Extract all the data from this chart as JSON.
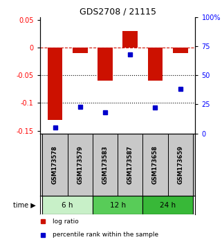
{
  "title": "GDS2708 / 21115",
  "samples": [
    "GSM173578",
    "GSM173579",
    "GSM173583",
    "GSM173587",
    "GSM173658",
    "GSM173659"
  ],
  "log_ratios": [
    -0.13,
    -0.01,
    -0.06,
    0.03,
    -0.06,
    -0.01
  ],
  "percentile_ranks": [
    5,
    23,
    18,
    68,
    22,
    38
  ],
  "groups": [
    {
      "label": "6 h",
      "indices": [
        0,
        1
      ],
      "color": "#c8f0c8"
    },
    {
      "label": "12 h",
      "indices": [
        2,
        3
      ],
      "color": "#58cc58"
    },
    {
      "label": "24 h",
      "indices": [
        4,
        5
      ],
      "color": "#38b838"
    }
  ],
  "bar_color": "#cc1100",
  "dot_color": "#0000cc",
  "left_ytick_vals": [
    0.05,
    0,
    -0.05,
    -0.1,
    -0.15
  ],
  "left_ytick_labels": [
    "0.05",
    "0",
    "-0.05",
    "-0.1",
    "-0.15"
  ],
  "right_ytick_vals": [
    100,
    75,
    50,
    25,
    0
  ],
  "right_ytick_labels": [
    "100%",
    "75",
    "50",
    "25",
    "0"
  ],
  "ylim_left": [
    -0.155,
    0.055
  ],
  "ylim_right": [
    0,
    100
  ],
  "legend_items": [
    "log ratio",
    "percentile rank within the sample"
  ],
  "time_label": "time",
  "background_color": "#ffffff",
  "sample_box_color": "#c8c8c8",
  "bar_width": 0.6
}
